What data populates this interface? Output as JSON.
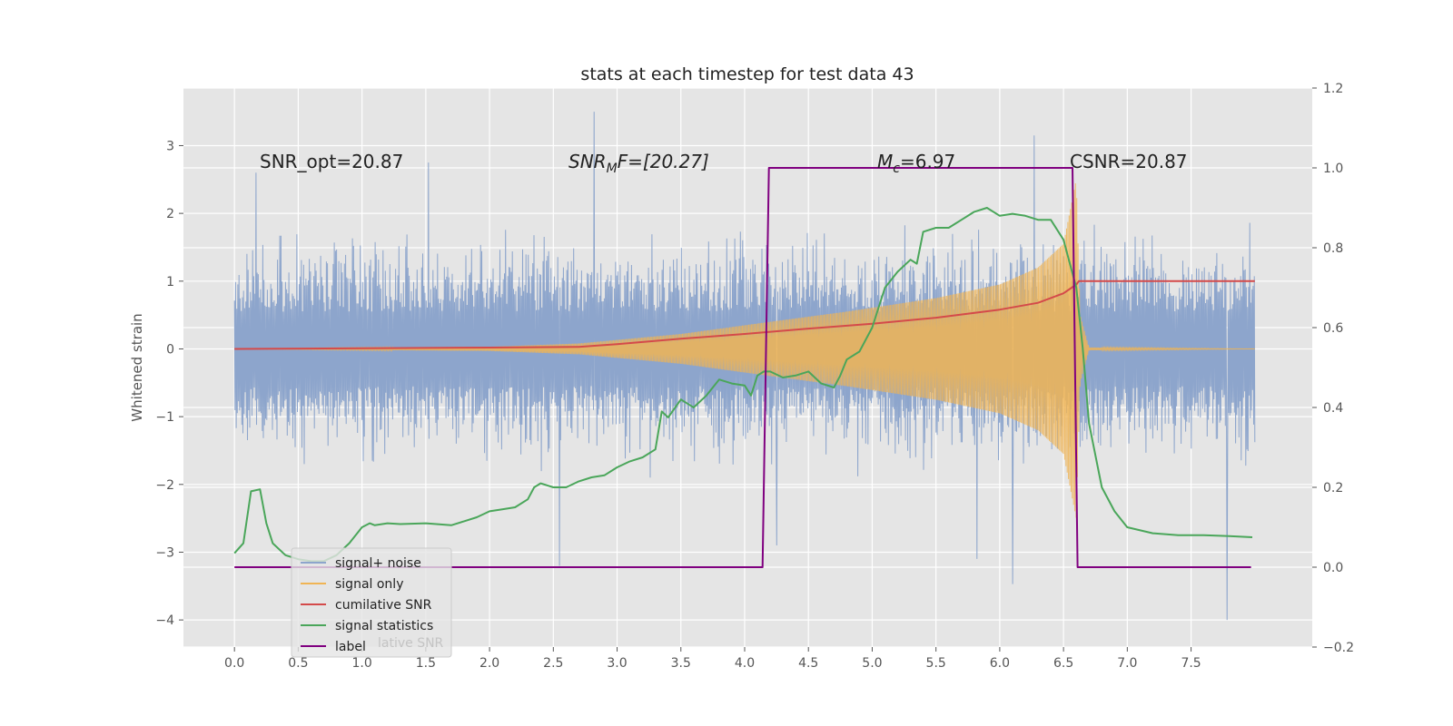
{
  "chart_data": {
    "type": "line",
    "title": "stats at each timestep for test data 43",
    "xlabel": "",
    "ylabel": "Whitened strain",
    "y2label": "",
    "xlim": [
      -0.4,
      8.45
    ],
    "ylim": [
      -4.4,
      3.85
    ],
    "y2lim": [
      -0.2,
      1.2
    ],
    "grid": true,
    "xticks": [
      0.0,
      0.5,
      1.0,
      1.5,
      2.0,
      2.5,
      3.0,
      3.5,
      4.0,
      4.5,
      5.0,
      5.5,
      6.0,
      6.5,
      7.0,
      7.5
    ],
    "xtick_labels": [
      "0.0",
      "0.5",
      "1.0",
      "1.5",
      "2.0",
      "2.5",
      "3.0",
      "3.5",
      "4.0",
      "4.5",
      "5.0",
      "5.5",
      "6.0",
      "6.5",
      "7.0",
      "7.5"
    ],
    "yticks": [
      3,
      2,
      1,
      0,
      -1,
      -2,
      -3,
      -4
    ],
    "ytick_labels": [
      "3",
      "2",
      "1",
      "0",
      "−1",
      "−2",
      "−3",
      "−4"
    ],
    "y2ticks": [
      1.2,
      1.0,
      0.8,
      0.6,
      0.4,
      0.2,
      0.0,
      -0.2
    ],
    "y2tick_labels": [
      "1.2",
      "1.0",
      "0.8",
      "0.6",
      "0.4",
      "0.2",
      "0.0",
      "−0.2"
    ],
    "annotations": {
      "snr_opt": "SNR_opt=20.87",
      "snr_mf_main": "SNR",
      "snr_mf_sub": "M",
      "snr_mf_rest": "F=[20.27]",
      "mc_main": "M",
      "mc_sub": "c",
      "mc_rest": "=6.97",
      "csnr": "CSNR=20.87"
    },
    "series": [
      {
        "name": "signal+ noise",
        "axis": "left",
        "color": "#8da5cc",
        "style": "noisy",
        "x_range": [
          0.0,
          8.0
        ],
        "typical_amplitude": 1.25,
        "peak_values": [
          [
            0.17,
            2.6
          ],
          [
            1.52,
            2.75
          ],
          [
            2.82,
            3.5
          ],
          [
            6.27,
            3.15
          ],
          [
            7.78,
            -4.0
          ],
          [
            6.1,
            -3.47
          ],
          [
            5.82,
            -3.1
          ],
          [
            2.55,
            -3.2
          ],
          [
            4.25,
            -2.9
          ]
        ]
      },
      {
        "name": "signal only",
        "axis": "left",
        "color": "#f0b454",
        "style": "chirp",
        "x_range": [
          0.0,
          8.0
        ],
        "envelope": [
          [
            0.0,
            0.0
          ],
          [
            2.0,
            0.03
          ],
          [
            2.7,
            0.08
          ],
          [
            3.5,
            0.22
          ],
          [
            4.2,
            0.4
          ],
          [
            4.8,
            0.55
          ],
          [
            5.5,
            0.75
          ],
          [
            6.0,
            0.95
          ],
          [
            6.3,
            1.2
          ],
          [
            6.5,
            1.55
          ],
          [
            6.6,
            2.5
          ],
          [
            6.63,
            0.5
          ],
          [
            6.7,
            0.02
          ],
          [
            8.0,
            0.0
          ]
        ]
      },
      {
        "name": "cumilative SNR",
        "axis": "left",
        "color": "#d44a4a",
        "x": [
          0.0,
          2.0,
          2.7,
          3.0,
          3.5,
          4.0,
          4.5,
          5.0,
          5.5,
          6.0,
          6.3,
          6.5,
          6.6,
          6.62,
          8.0
        ],
        "y": [
          0.0,
          0.02,
          0.03,
          0.07,
          0.15,
          0.22,
          0.3,
          0.37,
          0.46,
          0.58,
          0.68,
          0.82,
          0.95,
          1.0,
          1.0
        ]
      },
      {
        "name": "signal statistics",
        "axis": "right",
        "color": "#4aa65a",
        "x": [
          0.0,
          0.07,
          0.13,
          0.2,
          0.25,
          0.3,
          0.4,
          0.5,
          0.6,
          0.7,
          0.8,
          0.9,
          1.0,
          1.06,
          1.1,
          1.2,
          1.3,
          1.5,
          1.7,
          1.8,
          1.9,
          2.0,
          2.1,
          2.2,
          2.3,
          2.35,
          2.4,
          2.5,
          2.6,
          2.7,
          2.8,
          2.9,
          3.0,
          3.1,
          3.2,
          3.3,
          3.35,
          3.4,
          3.5,
          3.6,
          3.7,
          3.8,
          3.9,
          4.0,
          4.05,
          4.1,
          4.15,
          4.2,
          4.3,
          4.4,
          4.5,
          4.6,
          4.7,
          4.75,
          4.8,
          4.9,
          5.0,
          5.1,
          5.2,
          5.3,
          5.35,
          5.4,
          5.5,
          5.6,
          5.65,
          5.7,
          5.8,
          5.9,
          6.0,
          6.1,
          6.2,
          6.3,
          6.4,
          6.5,
          6.6,
          6.65,
          6.7,
          6.8,
          6.9,
          7.0,
          7.2,
          7.4,
          7.6,
          7.8,
          7.98
        ],
        "y": [
          0.035,
          0.06,
          0.19,
          0.195,
          0.11,
          0.06,
          0.03,
          0.02,
          0.015,
          0.015,
          0.03,
          0.06,
          0.1,
          0.11,
          0.105,
          0.11,
          0.108,
          0.11,
          0.105,
          0.115,
          0.125,
          0.14,
          0.145,
          0.15,
          0.17,
          0.2,
          0.21,
          0.2,
          0.2,
          0.215,
          0.225,
          0.23,
          0.25,
          0.265,
          0.275,
          0.295,
          0.39,
          0.375,
          0.42,
          0.4,
          0.43,
          0.47,
          0.46,
          0.455,
          0.43,
          0.48,
          0.49,
          0.49,
          0.475,
          0.48,
          0.49,
          0.46,
          0.45,
          0.48,
          0.52,
          0.54,
          0.6,
          0.7,
          0.74,
          0.77,
          0.76,
          0.84,
          0.85,
          0.85,
          0.86,
          0.87,
          0.89,
          0.9,
          0.88,
          0.885,
          0.88,
          0.87,
          0.87,
          0.82,
          0.7,
          0.55,
          0.36,
          0.2,
          0.14,
          0.1,
          0.085,
          0.08,
          0.08,
          0.078,
          0.075
        ]
      },
      {
        "name": "label",
        "axis": "right",
        "color": "#800080",
        "x": [
          0.0,
          4.14,
          4.19,
          6.57,
          6.61,
          7.97
        ],
        "y": [
          0.0,
          0.0,
          1.0,
          1.0,
          0.0,
          0.0
        ]
      }
    ],
    "legend": {
      "placement": "lower-left",
      "entries": [
        "signal+ noise",
        "signal only",
        "cumilative SNR",
        "signal statistics",
        "label"
      ],
      "ghost_text": "lative SNR"
    }
  }
}
